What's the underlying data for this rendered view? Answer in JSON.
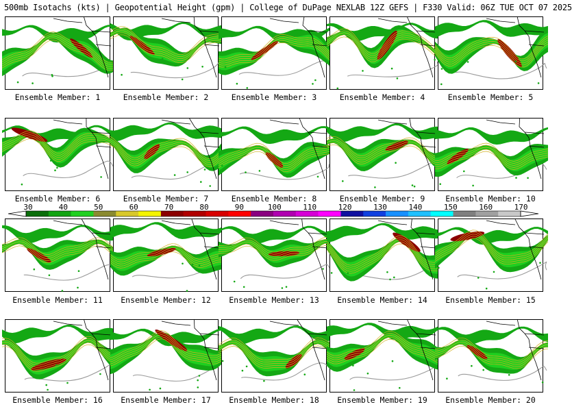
{
  "header": {
    "title": "500mb Isotachs (kts) | Geopotential Height (gpm) | College of DuPage NEXLAB   12Z GEFS | F330 Valid: 06Z TUE OCT 07 2025"
  },
  "panel_label_prefix": "Ensemble Member:",
  "members": [
    "1",
    "2",
    "3",
    "4",
    "5",
    "6",
    "7",
    "8",
    "9",
    "10",
    "11",
    "12",
    "13",
    "14",
    "15",
    "16",
    "17",
    "18",
    "19",
    "20"
  ],
  "colorbar": {
    "labels": [
      "30",
      "40",
      "50",
      "60",
      "70",
      "80",
      "90",
      "100",
      "110",
      "120",
      "130",
      "140",
      "150",
      "160",
      "170"
    ],
    "colors": [
      "#0a6e0a",
      "#11a411",
      "#20d020",
      "#8a8a30",
      "#d8c82a",
      "#f4f400",
      "#8b0000",
      "#b00000",
      "#d80000",
      "#ff0000",
      "#8a0080",
      "#b000b0",
      "#d600d6",
      "#ff00ff",
      "#1010a0",
      "#1040e0",
      "#1890ff",
      "#20c0ff",
      "#00ffff",
      "#808080",
      "#a0a0a0",
      "#c8c8c8"
    ]
  },
  "colors": {
    "jet_outer": "#14a814",
    "jet_inner": "#1fcf1f",
    "jet_core": "#8b0000",
    "contour": "#d2b020",
    "height_line": "#9a9a9a",
    "coast": "#000000"
  }
}
